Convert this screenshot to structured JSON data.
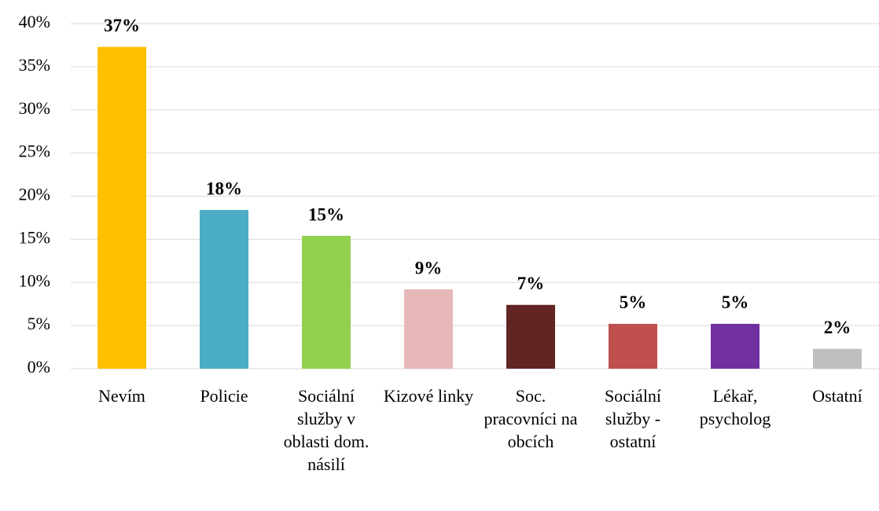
{
  "chart_data": {
    "type": "bar",
    "categories": [
      "Nevím",
      "Policie",
      "Sociální služby v oblasti dom. násilí",
      "Kizové linky",
      "Soc. pracovníci na obcích",
      "Sociální služby - ostatní",
      "Lékař, psycholog",
      "Ostatní"
    ],
    "values": [
      37.3,
      18.4,
      15.4,
      9.2,
      7.4,
      5.2,
      5.2,
      2.3
    ],
    "value_labels": [
      "37%",
      "18%",
      "15%",
      "9%",
      "7%",
      "5%",
      "5%",
      "2%"
    ],
    "colors": [
      "#ffc000",
      "#4bacc6",
      "#92d050",
      "#e6b9b8",
      "#632523",
      "#c0504d",
      "#7030a0",
      "#bfbfbf"
    ],
    "ylim": [
      0,
      40
    ],
    "yticks": [
      {
        "value": 0,
        "label": "0%"
      },
      {
        "value": 5,
        "label": "5%"
      },
      {
        "value": 10,
        "label": "10%"
      },
      {
        "value": 15,
        "label": "15%"
      },
      {
        "value": 20,
        "label": "20%"
      },
      {
        "value": 25,
        "label": "25%"
      },
      {
        "value": 30,
        "label": "30%"
      },
      {
        "value": 35,
        "label": "35%"
      },
      {
        "value": 40,
        "label": "40%"
      }
    ],
    "grid": true
  }
}
